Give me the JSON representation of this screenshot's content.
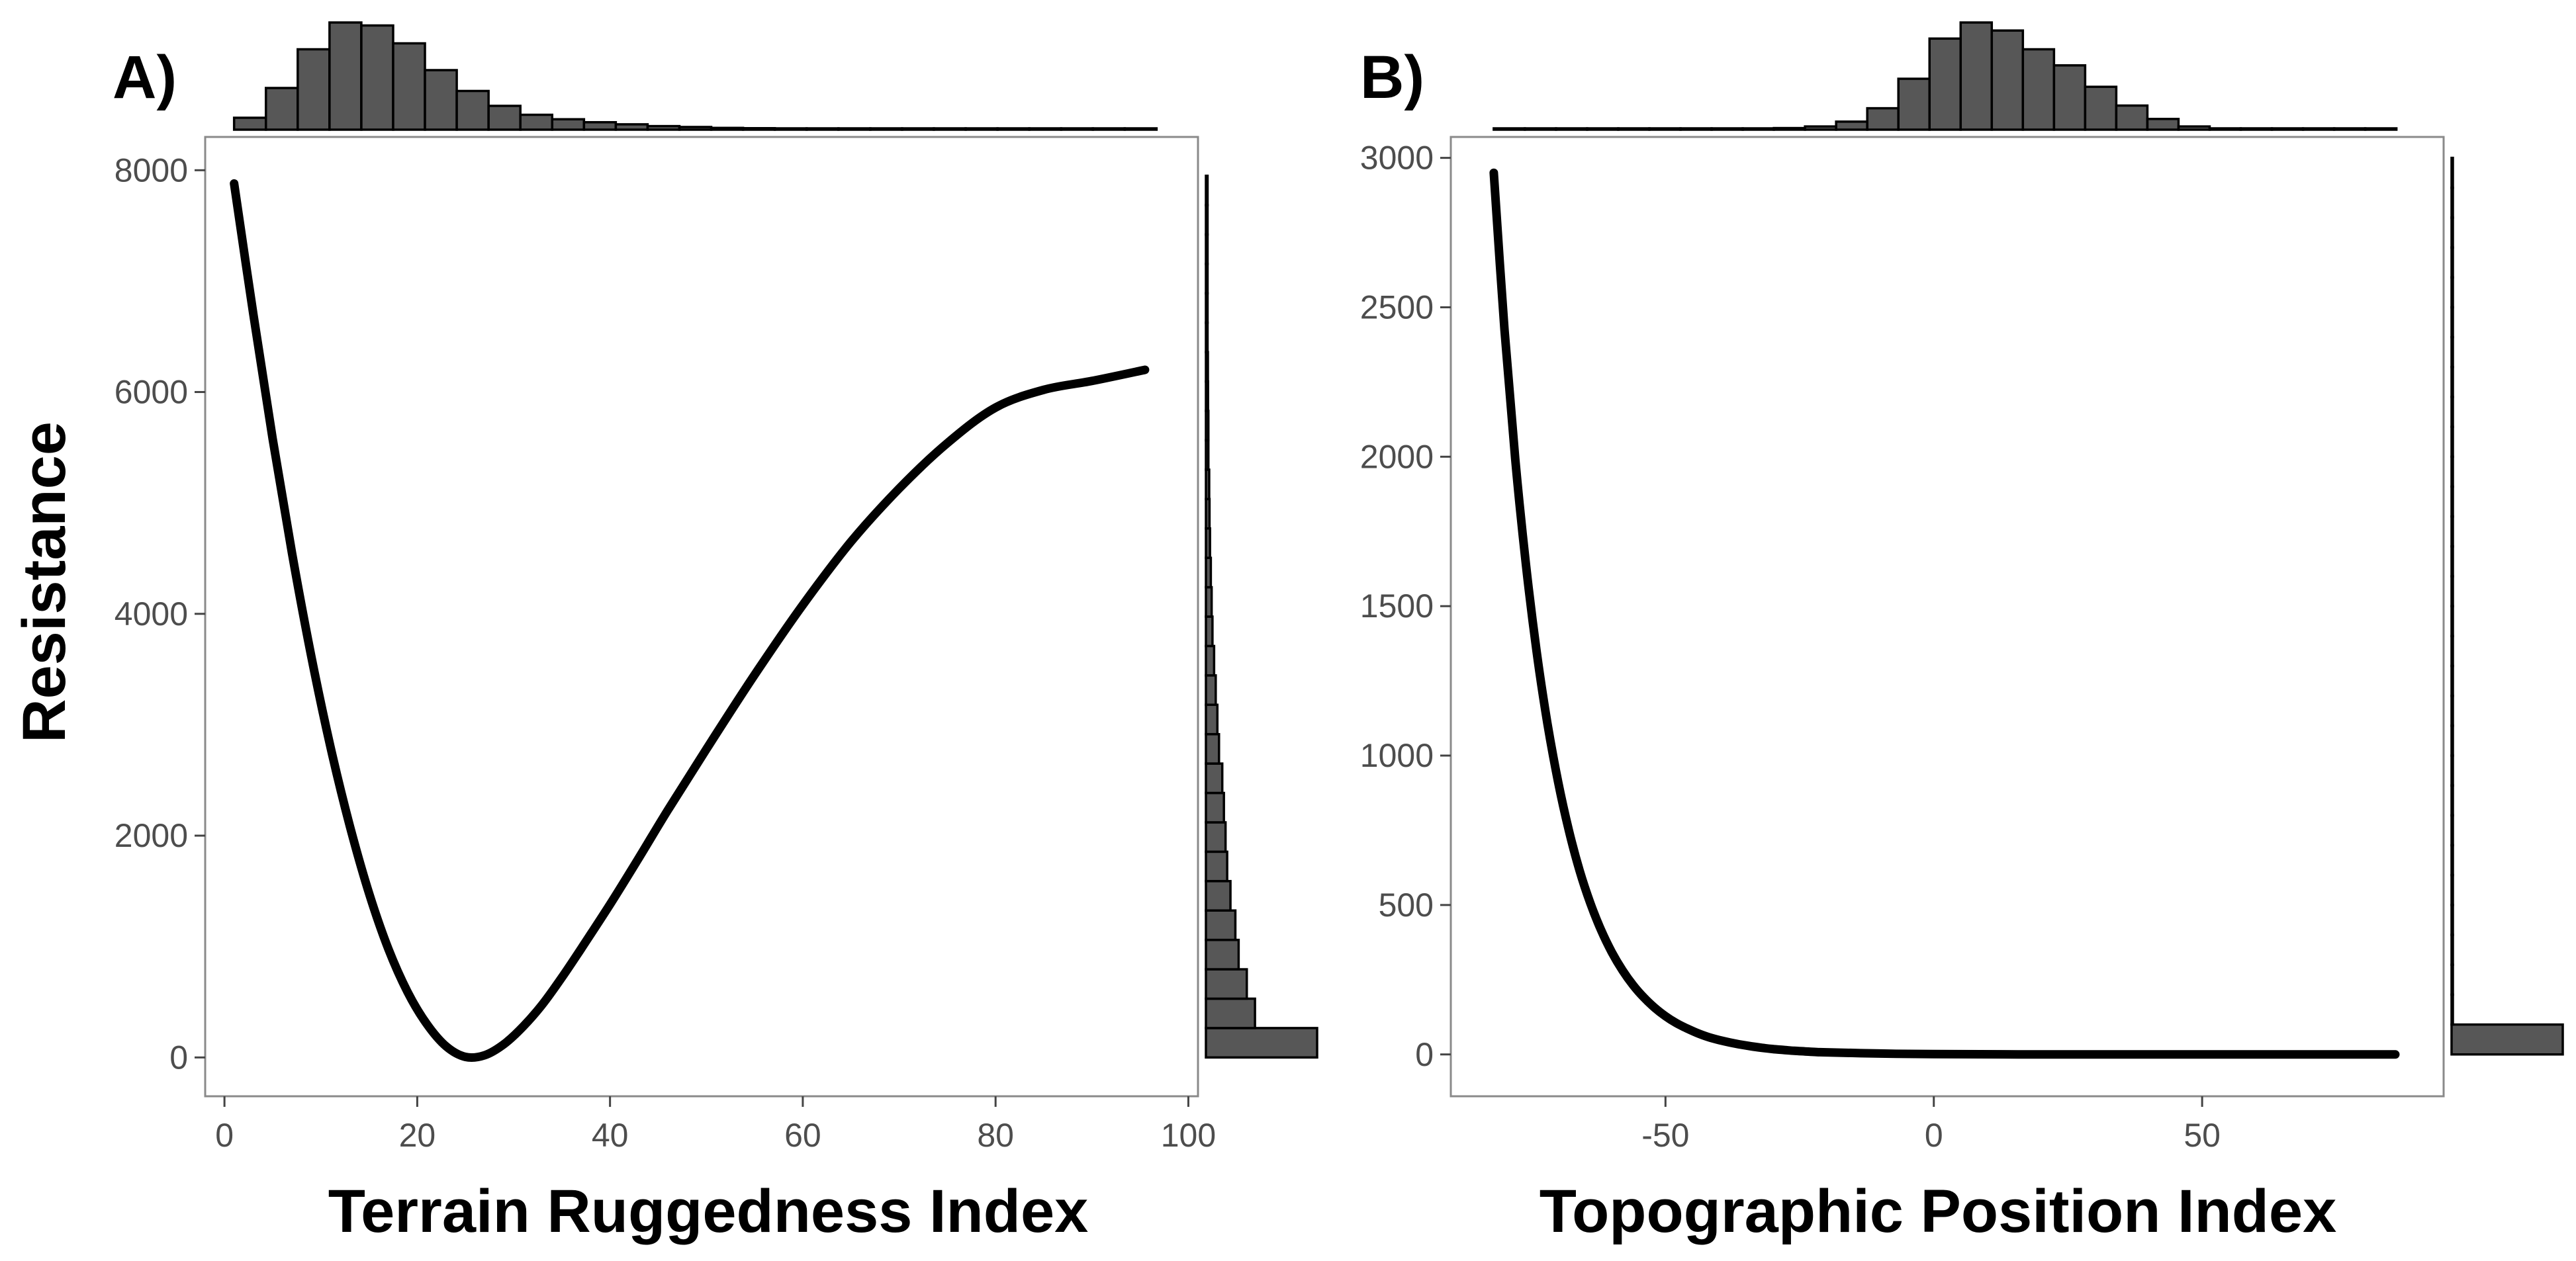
{
  "figure": {
    "y_axis_title": "Resistance"
  },
  "chart_data": [
    {
      "type": "line",
      "panel_label": "A)",
      "xlabel": "Terrain Ruggedness Index",
      "ylabel": "Resistance",
      "xlim": [
        -2,
        101
      ],
      "ylim": [
        -350,
        8300
      ],
      "x_ticks": [
        0,
        20,
        40,
        60,
        80,
        100
      ],
      "x_tick_labels": [
        "0",
        "20",
        "40",
        "60",
        "80",
        "100"
      ],
      "y_ticks": [
        0,
        2000,
        4000,
        6000,
        8000
      ],
      "y_tick_labels": [
        "0",
        "2000",
        "4000",
        "6000",
        "8000"
      ],
      "series": [
        {
          "name": "Resistance",
          "x": [
            1,
            3,
            5,
            7,
            9,
            11,
            13,
            15,
            17,
            19,
            21,
            23,
            25,
            27,
            29,
            31,
            33,
            35,
            37,
            40,
            43,
            46,
            50,
            55,
            60,
            65,
            70,
            75,
            80,
            85,
            90,
            95.5
          ],
          "y": [
            7880,
            6700,
            5580,
            4550,
            3620,
            2800,
            2090,
            1480,
            980,
            590,
            300,
            100,
            5,
            20,
            120,
            280,
            480,
            720,
            980,
            1380,
            1800,
            2230,
            2780,
            3450,
            4080,
            4650,
            5130,
            5540,
            5860,
            6020,
            6100,
            6200
          ]
        }
      ],
      "top_histogram": {
        "bin_width": 3.3,
        "bin_start": 1,
        "counts": [
          4,
          14,
          27,
          36,
          35,
          29,
          20,
          13,
          8,
          5,
          3.5,
          2.5,
          1.8,
          1.2,
          0.9,
          0.6,
          0.5,
          0.4,
          0.3,
          0.3,
          0.2,
          0.2,
          0.2,
          0.2,
          0.2,
          0.2,
          0.2,
          0.2,
          0.2
        ]
      },
      "right_histogram": {
        "bin_width_resistance": 265,
        "bin_start": 0,
        "counts": [
          68,
          30,
          25,
          20,
          18,
          15,
          13,
          12,
          11,
          10,
          8,
          7,
          6,
          5,
          4,
          3.5,
          3,
          2.5,
          2.2,
          2,
          1.5,
          1.5,
          1.3,
          1.2,
          1,
          1,
          1,
          1,
          1,
          1
        ]
      }
    },
    {
      "type": "line",
      "panel_label": "B)",
      "xlabel": "Topographic Position Index",
      "ylabel": "",
      "xlim": [
        -90,
        95
      ],
      "ylim": [
        -140,
        3070
      ],
      "x_ticks": [
        -50,
        0,
        50
      ],
      "x_tick_labels": [
        "-50",
        "0",
        "50"
      ],
      "y_ticks": [
        0,
        500,
        1000,
        1500,
        2000,
        2500,
        3000
      ],
      "y_tick_labels": [
        "0",
        "500",
        "1000",
        "1500",
        "2000",
        "2500",
        "3000"
      ],
      "series": [
        {
          "name": "Resistance",
          "x": [
            -82,
            -80,
            -78,
            -76,
            -74,
            -72,
            -70,
            -68,
            -66,
            -64,
            -62,
            -60,
            -58,
            -56,
            -54,
            -52,
            -50,
            -48,
            -46,
            -44,
            -42,
            -40,
            -38,
            -36,
            -34,
            -32,
            -30,
            -28,
            -26,
            -24,
            -22,
            -20,
            -10,
            0,
            20,
            40,
            60,
            86
          ],
          "y": [
            2950,
            2425,
            1993,
            1639,
            1347,
            1108,
            911,
            749,
            615,
            506,
            416,
            342,
            281,
            231,
            190,
            156,
            128,
            105,
            87,
            71,
            58,
            48,
            40,
            33,
            27,
            22,
            18,
            15,
            12,
            10,
            8,
            7,
            3,
            1,
            0,
            0,
            0,
            0
          ]
        }
      ],
      "top_histogram": {
        "bin_width": 5.8,
        "bin_start": -82,
        "counts": [
          0.3,
          0.3,
          0.3,
          0.3,
          0.3,
          0.3,
          0.3,
          0.3,
          0.4,
          0.6,
          1.2,
          3,
          8,
          19,
          34,
          40,
          37,
          30,
          24,
          16,
          9,
          4,
          1.2,
          0.4,
          0.3,
          0.3,
          0.3,
          0.3,
          0.3
        ]
      },
      "right_histogram": {
        "bin_width_resistance": 100,
        "bin_start": 0,
        "counts": [
          68,
          0.5,
          0.5,
          0.5,
          0.5,
          0.5,
          0.5,
          0.5,
          0.5,
          0.5,
          0.5,
          0.5,
          0.5,
          0.5,
          0.5,
          0.5,
          0.5,
          0.5,
          0.5,
          0.5,
          0.5,
          0.5,
          0.5,
          0.5,
          0.5,
          0.5,
          0.5,
          0.5,
          0.5,
          0.5
        ]
      }
    }
  ]
}
